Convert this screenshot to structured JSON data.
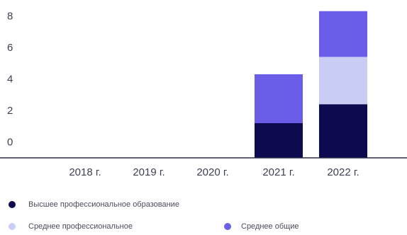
{
  "chart_data": {
    "type": "bar",
    "stacked": true,
    "title": "",
    "xlabel": "",
    "ylabel": "",
    "categories": [
      "2018 г.",
      "2019 г.",
      "2020 г.",
      "2021 г.",
      "2022 г."
    ],
    "series": [
      {
        "name": "Высшее профессиональное образование",
        "color": "#0d0a4f",
        "values": [
          0,
          0,
          0,
          1.2,
          2.4
        ]
      },
      {
        "name": "Среднее профессиональное",
        "color": "#c9cdf3",
        "values": [
          0,
          0,
          0,
          0,
          3.0
        ]
      },
      {
        "name": "Среднее общие",
        "color": "#6a5ee8",
        "values": [
          0,
          0,
          0,
          3.1,
          2.9
        ]
      }
    ],
    "ylim": [
      -1,
      8.2
    ],
    "yticks": [
      "0",
      "2",
      "4",
      "6",
      "8"
    ],
    "grid": false,
    "legend_position": "bottom"
  }
}
